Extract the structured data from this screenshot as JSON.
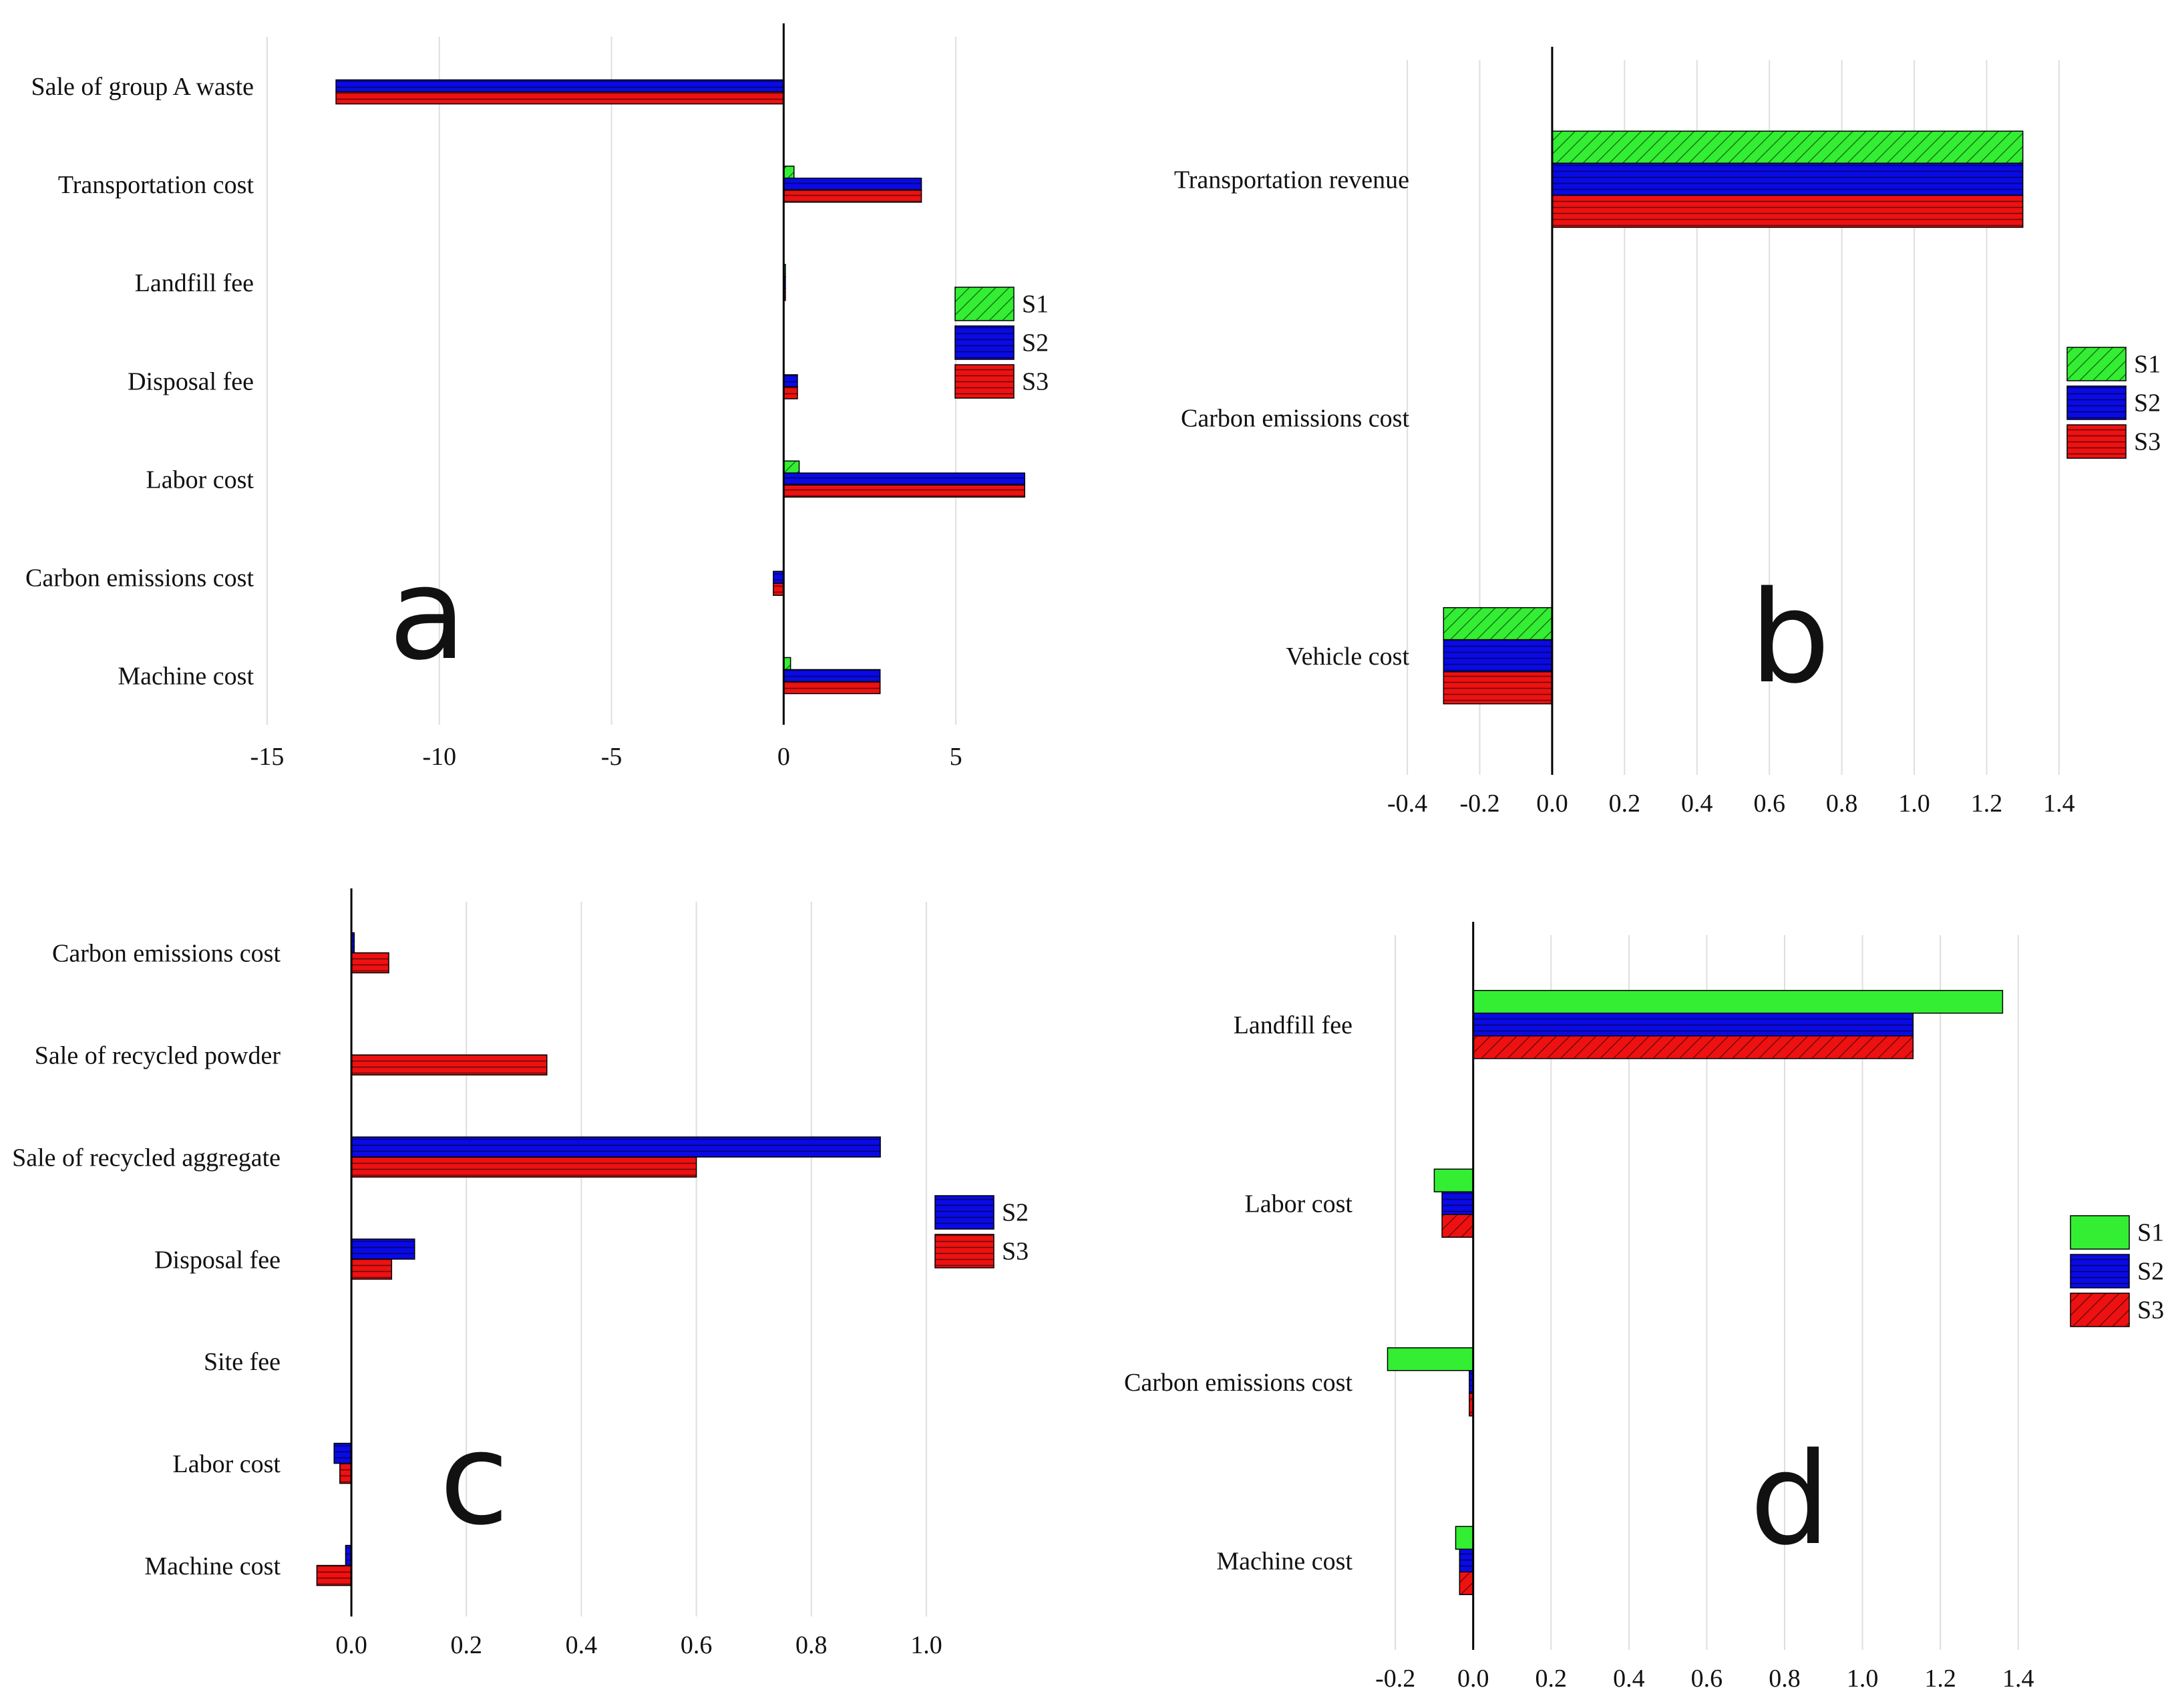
{
  "colors": {
    "S1": "#33ee33",
    "S2": "#0a0ae6",
    "S3": "#ee1111",
    "grid": "#dedede",
    "axis": "#000000"
  },
  "chart_data": [
    {
      "type": "bar",
      "panel_label": "a",
      "orientation": "horizontal",
      "categories": [
        "Sale of group A waste",
        "Transportation cost",
        "Landfill fee",
        "Disposal fee",
        "Labor cost",
        "Carbon emissions cost",
        "Machine cost"
      ],
      "series": [
        {
          "name": "S1",
          "values": [
            0,
            0.3,
            0.05,
            0,
            0.45,
            0,
            0.2
          ]
        },
        {
          "name": "S2",
          "values": [
            -13,
            4.0,
            0.05,
            0.4,
            7.0,
            -0.3,
            2.8
          ]
        },
        {
          "name": "S3",
          "values": [
            -13,
            4.0,
            0.05,
            0.4,
            7.0,
            -0.3,
            2.8
          ]
        }
      ],
      "xlim": [
        -15,
        7.5
      ],
      "xticks": [
        "-15",
        "-10",
        "-5",
        "0",
        "5"
      ],
      "xtick_values": [
        -15,
        -10,
        -5,
        0,
        5
      ],
      "legend_position": "right",
      "legend": [
        "S1",
        "S2",
        "S3"
      ],
      "hatch": {
        "S1": "diagonal",
        "S2": "horizontal",
        "S3": "horizontal"
      }
    },
    {
      "type": "bar",
      "panel_label": "b",
      "orientation": "horizontal",
      "categories": [
        "Transportation revenue",
        "Carbon emissions cost",
        "Vehicle cost"
      ],
      "series": [
        {
          "name": "S1",
          "values": [
            1.3,
            0,
            -0.3
          ]
        },
        {
          "name": "S2",
          "values": [
            1.3,
            0,
            -0.3
          ]
        },
        {
          "name": "S3",
          "values": [
            1.3,
            0,
            -0.3
          ]
        }
      ],
      "xlim": [
        -0.45,
        1.45
      ],
      "xticks": [
        "-0.4",
        "-0.2",
        "0.0",
        "0.2",
        "0.4",
        "0.6",
        "0.8",
        "1.0",
        "1.2",
        "1.4"
      ],
      "xtick_values": [
        -0.4,
        -0.2,
        0.0,
        0.2,
        0.4,
        0.6,
        0.8,
        1.0,
        1.2,
        1.4
      ],
      "legend_position": "right",
      "legend": [
        "S1",
        "S2",
        "S3"
      ],
      "hatch": {
        "S1": "diagonal",
        "S2": "horizontal",
        "S3": "horizontal"
      }
    },
    {
      "type": "bar",
      "panel_label": "c",
      "orientation": "horizontal",
      "categories": [
        "Carbon emissions cost",
        "Sale of recycled powder",
        "Sale of recycled aggregate",
        "Disposal fee",
        "Site fee",
        "Labor cost",
        "Machine cost"
      ],
      "series": [
        {
          "name": "S2",
          "values": [
            0.005,
            0,
            0.92,
            0.11,
            0,
            -0.03,
            -0.01
          ]
        },
        {
          "name": "S3",
          "values": [
            0.065,
            0.34,
            0.6,
            0.07,
            0,
            -0.02,
            -0.06
          ]
        }
      ],
      "xlim": [
        -0.1,
        1.05
      ],
      "xticks": [
        "0.0",
        "0.2",
        "0.4",
        "0.6",
        "0.8",
        "1.0"
      ],
      "xtick_values": [
        0.0,
        0.2,
        0.4,
        0.6,
        0.8,
        1.0
      ],
      "legend_position": "right",
      "legend": [
        "S2",
        "S3"
      ],
      "hatch": {
        "S2": "horizontal",
        "S3": "horizontal"
      }
    },
    {
      "type": "bar",
      "panel_label": "d",
      "orientation": "horizontal",
      "categories": [
        "Landfill fee",
        "Labor cost",
        "Carbon emissions cost",
        "Machine cost"
      ],
      "series": [
        {
          "name": "S1",
          "values": [
            1.36,
            -0.1,
            -0.22,
            -0.045
          ]
        },
        {
          "name": "S2",
          "values": [
            1.13,
            -0.08,
            -0.01,
            -0.035
          ]
        },
        {
          "name": "S3",
          "values": [
            1.13,
            -0.08,
            -0.01,
            -0.035
          ]
        }
      ],
      "xlim": [
        -0.25,
        1.5
      ],
      "xticks": [
        "-0.2",
        "0.0",
        "0.2",
        "0.4",
        "0.6",
        "0.8",
        "1.0",
        "1.2",
        "1.4"
      ],
      "xtick_values": [
        -0.2,
        0.0,
        0.2,
        0.4,
        0.6,
        0.8,
        1.0,
        1.2,
        1.4
      ],
      "legend_position": "right",
      "legend": [
        "S1",
        "S2",
        "S3"
      ],
      "hatch": {
        "S1": "none",
        "S2": "horizontal",
        "S3": "diagonal"
      }
    }
  ]
}
